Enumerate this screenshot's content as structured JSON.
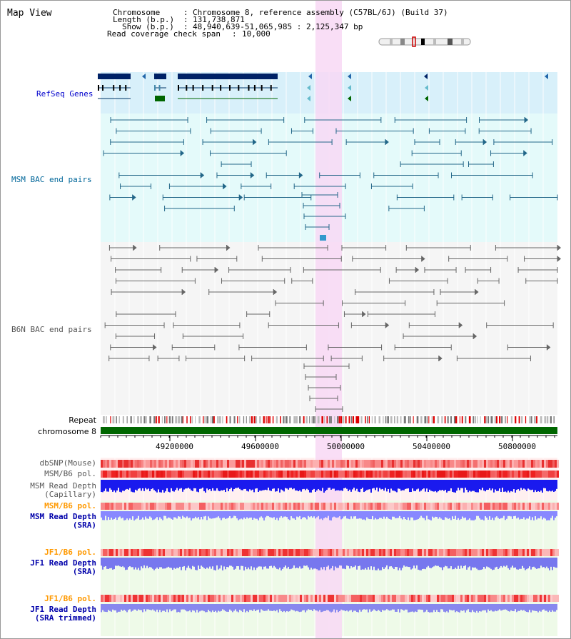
{
  "title": "Map View",
  "info": {
    "chromosome_key": "Chromosome",
    "chromosome_value": "Chromosome 8, reference assembly (C57BL/6J) (Build 37)",
    "length_key": "Length (b.p.)",
    "length_value": "131,738,871",
    "show_key": "Show (b.p.)",
    "show_value": "48,940,639-51,065,985 : 2,125,347 bp",
    "span_key": "Read coverage check span",
    "span_value": "10,000",
    "sep": ":"
  },
  "tracks": {
    "refseq": "RefSeq Genes",
    "msm_bac": "MSM BAC end pairs",
    "b6n_bac": "B6N BAC end pairs",
    "repeat": "Repeat",
    "chromosome": "chromosome 8",
    "dbsnp": "dbSNP(Mouse)",
    "msm_b6_pol": "MSM/B6 pol.",
    "msm_depth_cap_1": "MSM Read Depth",
    "msm_depth_cap_2": "(Capillary)",
    "msm_b6_pol_sra": "MSM/B6 pol.",
    "msm_depth_sra_1": "MSM Read Depth",
    "msm_depth_sra_2": "(SRA)",
    "jf1_pol_1": "JF1/B6 pol.",
    "jf1_depth_1": "JF1 Read Depth",
    "jf1_depth_1b": "(SRA)",
    "jf1_pol_2": "JF1/B6 pol.",
    "jf1_depth_2": "JF1 Read Depth",
    "jf1_depth_2b": "(SRA trimmed)"
  },
  "axis_ticks": [
    "49200000",
    "49600000",
    "50000000",
    "50400000",
    "50800000"
  ],
  "colors": {
    "refseq_label": "#0000cc",
    "msm_label": "#006699",
    "b6n_label": "#555555",
    "orange_label": "#ff9900",
    "blue_label": "#0000aa",
    "highlight": "#f8d8f4",
    "chromosome_bar": "#006600"
  }
}
